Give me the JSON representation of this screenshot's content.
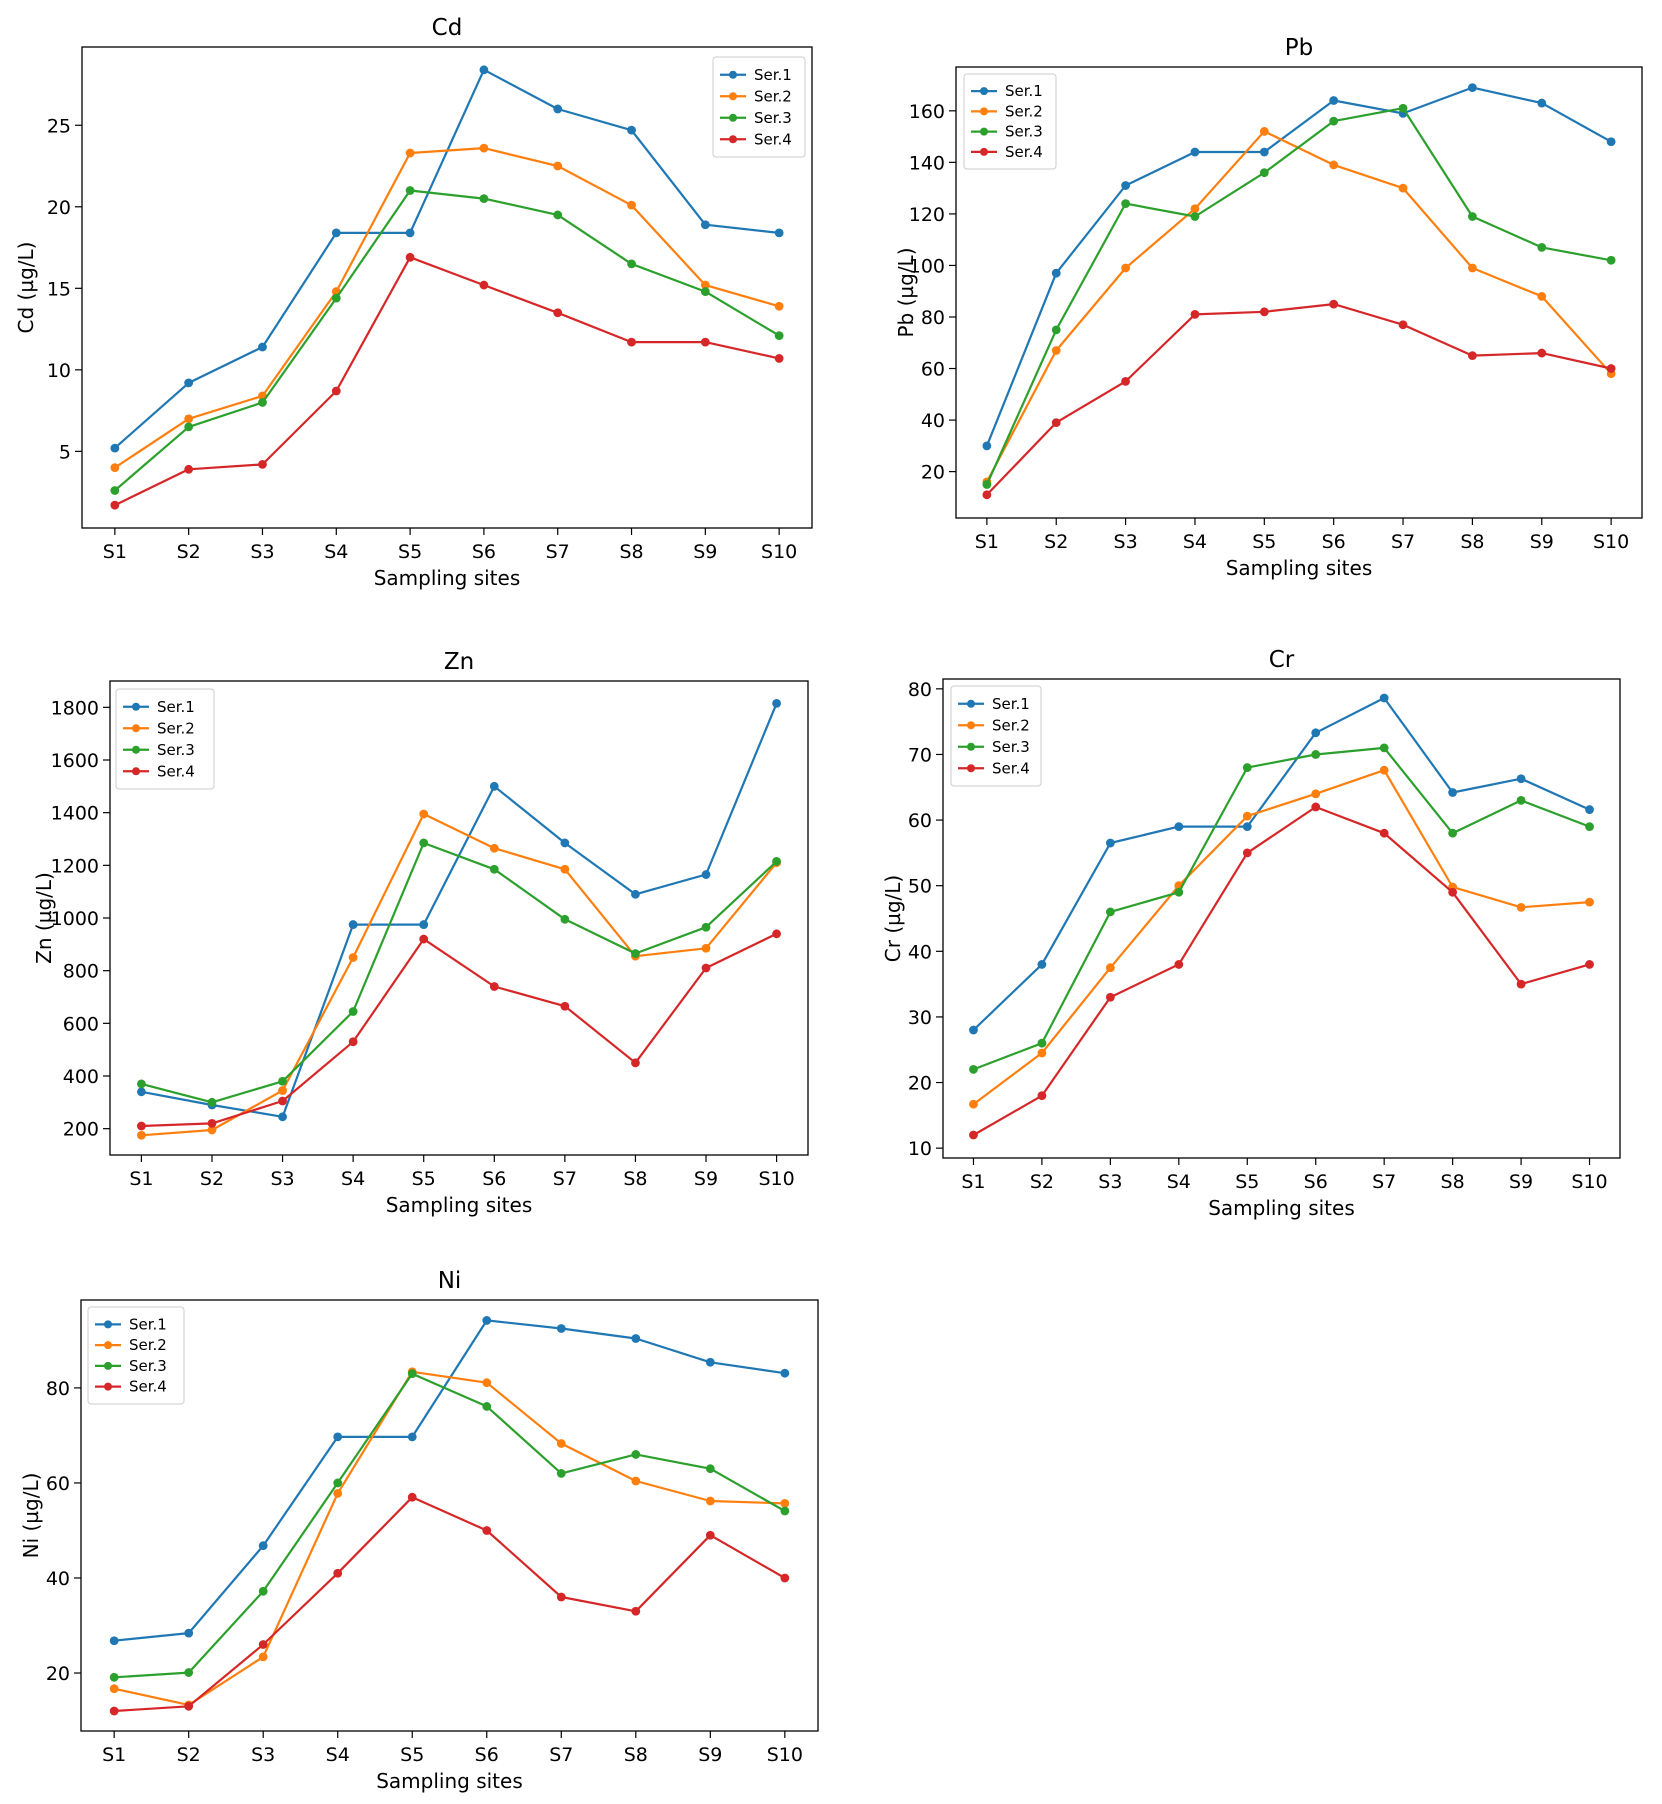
{
  "figure": {
    "series_names": [
      "Ser.1",
      "Ser.2",
      "Ser.3",
      "Ser.4"
    ],
    "series_colors": [
      "#1f77b4",
      "#ff7f0e",
      "#2ca02c",
      "#d62728"
    ],
    "xlabel": "Sampling sites"
  },
  "chart_data": [
    {
      "type": "line",
      "title": "Cd",
      "xlabel": "Sampling sites",
      "ylabel": "Cd (µg/L)",
      "categories": [
        "S1",
        "S2",
        "S3",
        "S4",
        "S5",
        "S6",
        "S7",
        "S8",
        "S9",
        "S10"
      ],
      "ylim": [
        0.3,
        29.8
      ],
      "yticks": [
        5,
        10,
        15,
        20,
        25
      ],
      "legend": "upper right",
      "series": [
        {
          "name": "Ser.1",
          "color": "#1f77b4",
          "values": [
            5.2,
            9.2,
            11.4,
            18.4,
            18.4,
            28.4,
            26.0,
            24.7,
            18.9,
            18.4
          ]
        },
        {
          "name": "Ser.2",
          "color": "#ff7f0e",
          "values": [
            4.0,
            7.0,
            8.4,
            14.8,
            23.3,
            23.6,
            22.5,
            20.1,
            15.2,
            13.9
          ]
        },
        {
          "name": "Ser.3",
          "color": "#2ca02c",
          "values": [
            2.6,
            6.5,
            8.0,
            14.4,
            21.0,
            20.5,
            19.5,
            16.5,
            14.8,
            12.1
          ]
        },
        {
          "name": "Ser.4",
          "color": "#d62728",
          "values": [
            1.7,
            3.9,
            4.2,
            8.7,
            16.9,
            15.2,
            13.5,
            11.7,
            11.7,
            10.7
          ]
        }
      ]
    },
    {
      "type": "line",
      "title": "Pb",
      "xlabel": "Sampling sites",
      "ylabel": "Pb (µg/L)",
      "categories": [
        "S1",
        "S2",
        "S3",
        "S4",
        "S5",
        "S6",
        "S7",
        "S8",
        "S9",
        "S10"
      ],
      "ylim": [
        2,
        177
      ],
      "yticks": [
        20,
        40,
        60,
        80,
        100,
        120,
        140,
        160
      ],
      "legend": "upper left",
      "series": [
        {
          "name": "Ser.1",
          "color": "#1f77b4",
          "values": [
            30,
            97,
            131,
            144,
            144,
            164,
            159,
            169,
            163,
            148
          ]
        },
        {
          "name": "Ser.2",
          "color": "#ff7f0e",
          "values": [
            16,
            67,
            99,
            122,
            152,
            139,
            130,
            99,
            88,
            58
          ]
        },
        {
          "name": "Ser.3",
          "color": "#2ca02c",
          "values": [
            15,
            75,
            124,
            119,
            136,
            156,
            161,
            119,
            107,
            102
          ]
        },
        {
          "name": "Ser.4",
          "color": "#d62728",
          "values": [
            11,
            39,
            55,
            81,
            82,
            85,
            77,
            65,
            66,
            60
          ]
        }
      ]
    },
    {
      "type": "line",
      "title": "Zn",
      "xlabel": "Sampling sites",
      "ylabel": "Zn (µg/L)",
      "categories": [
        "S1",
        "S2",
        "S3",
        "S4",
        "S5",
        "S6",
        "S7",
        "S8",
        "S9",
        "S10"
      ],
      "ylim": [
        100,
        1900
      ],
      "yticks": [
        200,
        400,
        600,
        800,
        1000,
        1200,
        1400,
        1600,
        1800
      ],
      "legend": "upper left",
      "series": [
        {
          "name": "Ser.1",
          "color": "#1f77b4",
          "values": [
            340,
            290,
            245,
            975,
            975,
            1500,
            1285,
            1090,
            1165,
            1815
          ]
        },
        {
          "name": "Ser.2",
          "color": "#ff7f0e",
          "values": [
            175,
            195,
            345,
            850,
            1395,
            1265,
            1185,
            855,
            885,
            1210
          ]
        },
        {
          "name": "Ser.3",
          "color": "#2ca02c",
          "values": [
            370,
            300,
            380,
            645,
            1285,
            1185,
            995,
            865,
            965,
            1215
          ]
        },
        {
          "name": "Ser.4",
          "color": "#d62728",
          "values": [
            210,
            220,
            305,
            530,
            920,
            740,
            665,
            450,
            810,
            940
          ]
        }
      ]
    },
    {
      "type": "line",
      "title": "Cr",
      "xlabel": "Sampling sites",
      "ylabel": "Cr (µg/L)",
      "categories": [
        "S1",
        "S2",
        "S3",
        "S4",
        "S5",
        "S6",
        "S7",
        "S8",
        "S9",
        "S10"
      ],
      "ylim": [
        8.5,
        81.5
      ],
      "yticks": [
        10,
        20,
        30,
        40,
        50,
        60,
        70,
        80
      ],
      "legend": "upper left",
      "series": [
        {
          "name": "Ser.1",
          "color": "#1f77b4",
          "values": [
            28,
            38,
            56.5,
            59,
            59,
            73.3,
            78.6,
            64.2,
            66.3,
            61.6
          ]
        },
        {
          "name": "Ser.2",
          "color": "#ff7f0e",
          "values": [
            16.7,
            24.5,
            37.5,
            50,
            60.6,
            64,
            67.6,
            49.8,
            46.7,
            47.5
          ]
        },
        {
          "name": "Ser.3",
          "color": "#2ca02c",
          "values": [
            22,
            26,
            46,
            49,
            68,
            70,
            71,
            58,
            63,
            59
          ]
        },
        {
          "name": "Ser.4",
          "color": "#d62728",
          "values": [
            12,
            18,
            33,
            38,
            55,
            62,
            58,
            49,
            35,
            38
          ]
        }
      ]
    },
    {
      "type": "line",
      "title": "Ni",
      "xlabel": "Sampling sites",
      "ylabel": "Ni (µg/L)",
      "categories": [
        "S1",
        "S2",
        "S3",
        "S4",
        "S5",
        "S6",
        "S7",
        "S8",
        "S9",
        "S10"
      ],
      "ylim": [
        7.8,
        98.5
      ],
      "yticks": [
        20,
        40,
        60,
        80
      ],
      "legend": "upper left",
      "series": [
        {
          "name": "Ser.1",
          "color": "#1f77b4",
          "values": [
            26.8,
            28.4,
            46.8,
            69.7,
            69.7,
            94.2,
            92.5,
            90.4,
            85.4,
            83.1
          ]
        },
        {
          "name": "Ser.2",
          "color": "#ff7f0e",
          "values": [
            16.7,
            13.3,
            23.4,
            57.8,
            83.4,
            81.1,
            68.3,
            60.4,
            56.2,
            55.7
          ]
        },
        {
          "name": "Ser.3",
          "color": "#2ca02c",
          "values": [
            19.1,
            20.1,
            37.2,
            60.0,
            83.0,
            76.1,
            62.0,
            66.0,
            63.0,
            54.1
          ]
        },
        {
          "name": "Ser.4",
          "color": "#d62728",
          "values": [
            12.0,
            13.0,
            26.0,
            41.0,
            57.0,
            50.0,
            36.0,
            33.0,
            49.0,
            40.0
          ]
        }
      ]
    }
  ]
}
